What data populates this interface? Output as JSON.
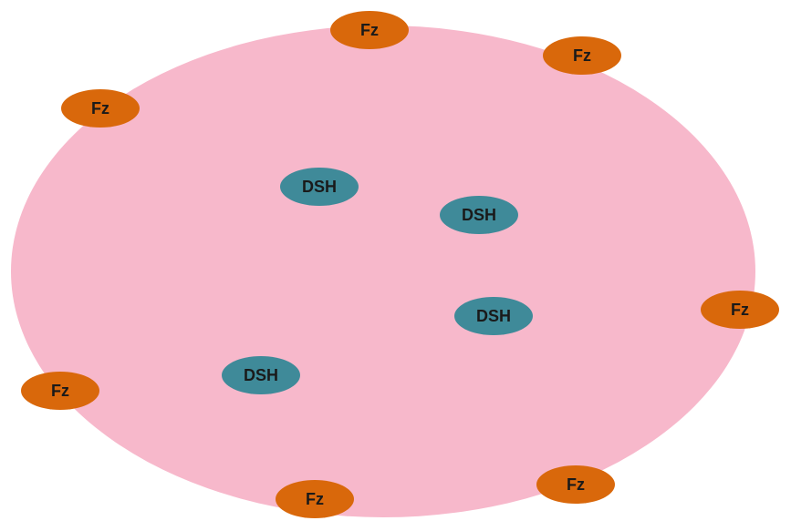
{
  "colors": {
    "background": "#ffffff",
    "cell_membrane": "#f7b8cb",
    "fz_node": "#d9680b",
    "dsh_node": "#3f8a99",
    "label_text": "#1a1a1a"
  },
  "fz_nodes": [
    {
      "label": "Fz"
    },
    {
      "label": "Fz"
    },
    {
      "label": "Fz"
    },
    {
      "label": "Fz"
    },
    {
      "label": "Fz"
    },
    {
      "label": "Fz"
    },
    {
      "label": "Fz"
    }
  ],
  "dsh_nodes": [
    {
      "label": "DSH"
    },
    {
      "label": "DSH"
    },
    {
      "label": "DSH"
    },
    {
      "label": "DSH"
    }
  ]
}
